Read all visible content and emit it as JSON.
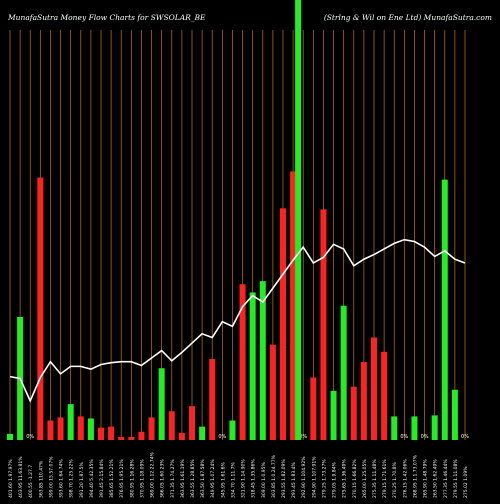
{
  "header": {
    "left_title": "MunafaSutra  Money Flow  Charts for SWSOLAR_BE",
    "right_title": "(Strlng & Wil   on   Ene   Ltd) MunafaSutra.com"
  },
  "colors": {
    "background": "#000000",
    "up": "#22ee22",
    "down": "#ff2222",
    "grid": "#c87800",
    "price_line": "#ffffff",
    "highlight": "#22ee22"
  },
  "chart_data": {
    "type": "bar",
    "title": "",
    "xlabel": "",
    "ylabel": "",
    "categories": [
      "401.60 1.97.97%",
      "403.95 11.63.81%",
      "400.55 -1.27.7",
      "363.85 110.47%",
      "399.00 15.57.07%",
      "393.60 1.64.74%",
      "398.70 1.25.22%",
      "391.20 1.87.5%",
      "394.40 5.42.35%",
      "391.45 2.15.84%",
      "385.65 1.52.21%",
      "376.95 1.95.21%",
      "380.95 1.16.28%",
      "370.95 1.18.09%",
      "369.00 1.12.22.74%",
      "366.05 1.60.23%",
      "371.35 1.74.27%",
      "363.95 1.61.19%",
      "363.55 1.28.85%",
      "363.50 1.87.58%",
      "349.95 1.07.24%",
      "345.95 1.61.6%",
      "334.70 1.11.7%",
      "321.90 1.14.90%",
      "318.45 1.35.86%",
      "309.00 1.0.95%",
      "303.85 1.0.24.77%",
      "293.55 1.82.09%",
      "293.45 1.83.4%",
      "292.90 1.104.92%",
      "294.90 1.107.91%",
      "279.25 1.73.27%",
      "279.05 1.9.84%",
      "275.65 1.36.49%",
      "270.15 1.66.82%",
      "265.00 1.25.05%",
      "275.35 1.11.48%",
      "279.15 1.71.61%",
      "270.25 1.70.8%",
      "276.15 1.42.06%",
      "268.95 1.1.73.07%",
      "265.90 1.48.79%",
      "263.50 1.62.49%",
      "277.35 1.46.44%",
      "279.55 1.11.08%",
      "275.02 1.09%"
    ],
    "series": [
      {
        "values": [
          6,
          120,
          0,
          256,
          19,
          22,
          35,
          23,
          21,
          12,
          13,
          3,
          3,
          8,
          22,
          70,
          28,
          7,
          33,
          13,
          79,
          0,
          19,
          152,
          144,
          155,
          93,
          226,
          262,
          0,
          61,
          225,
          48,
          131,
          52,
          76,
          100,
          86,
          23,
          0,
          23,
          0,
          24,
          254,
          49,
          0
        ],
        "directions": [
          "up",
          "up",
          "flat",
          "down",
          "down",
          "down",
          "up",
          "down",
          "up",
          "down",
          "down",
          "down",
          "down",
          "down",
          "down",
          "up",
          "down",
          "down",
          "down",
          "up",
          "down",
          "flat",
          "up",
          "down",
          "up",
          "up",
          "down",
          "down",
          "down",
          "flat",
          "down",
          "down",
          "up",
          "up",
          "down",
          "down",
          "down",
          "down",
          "up",
          "flat",
          "up",
          "flat",
          "up",
          "up",
          "up",
          "flat"
        ]
      }
    ],
    "price_line": [
      68,
      66,
      42,
      67,
      84,
      71,
      79,
      79,
      76,
      81,
      83,
      84,
      84,
      80,
      88,
      96,
      85,
      94,
      104,
      114,
      110,
      127,
      122,
      143,
      155,
      148,
      163,
      178,
      193,
      207,
      190,
      196,
      210,
      205,
      187,
      194,
      199,
      205,
      211,
      215,
      213,
      207,
      197,
      203,
      194,
      190
    ],
    "ylim": [
      0,
      400
    ],
    "price_ylim": [
      0,
      440
    ],
    "grid": true
  }
}
